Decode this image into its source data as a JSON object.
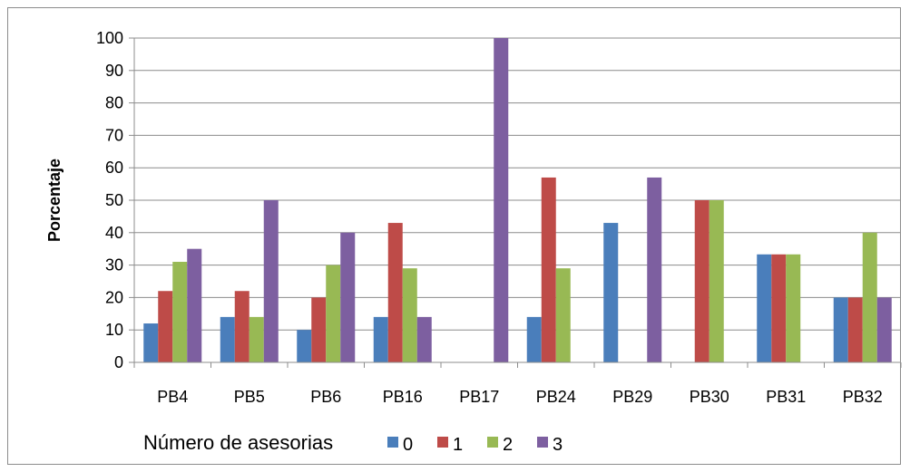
{
  "chart_data": {
    "type": "bar",
    "title": "",
    "xlabel": "",
    "ylabel": "Porcentaje",
    "ylim": [
      0,
      100
    ],
    "yticks": [
      0,
      10,
      20,
      30,
      40,
      50,
      60,
      70,
      80,
      90,
      100
    ],
    "grid": true,
    "legend_title": "Número de asesorias",
    "legend_position": "bottom",
    "categories": [
      "PB4",
      "PB5",
      "PB6",
      "PB16",
      "PB17",
      "PB24",
      "PB29",
      "PB30",
      "PB31",
      "PB32"
    ],
    "series": [
      {
        "name": "0",
        "color": "#4a7ebb",
        "values": [
          12,
          14,
          10,
          14,
          0,
          14,
          43,
          0,
          33.3,
          20
        ]
      },
      {
        "name": "1",
        "color": "#be4b48",
        "values": [
          22,
          22,
          20,
          43,
          0,
          57,
          0,
          50,
          33.3,
          20
        ]
      },
      {
        "name": "2",
        "color": "#98b954",
        "values": [
          31,
          14,
          30,
          29,
          0,
          29,
          0,
          50,
          33.3,
          40
        ]
      },
      {
        "name": "3",
        "color": "#7d5fa0",
        "values": [
          35,
          50,
          40,
          14,
          100,
          0,
          57,
          0,
          0,
          20
        ]
      }
    ]
  }
}
